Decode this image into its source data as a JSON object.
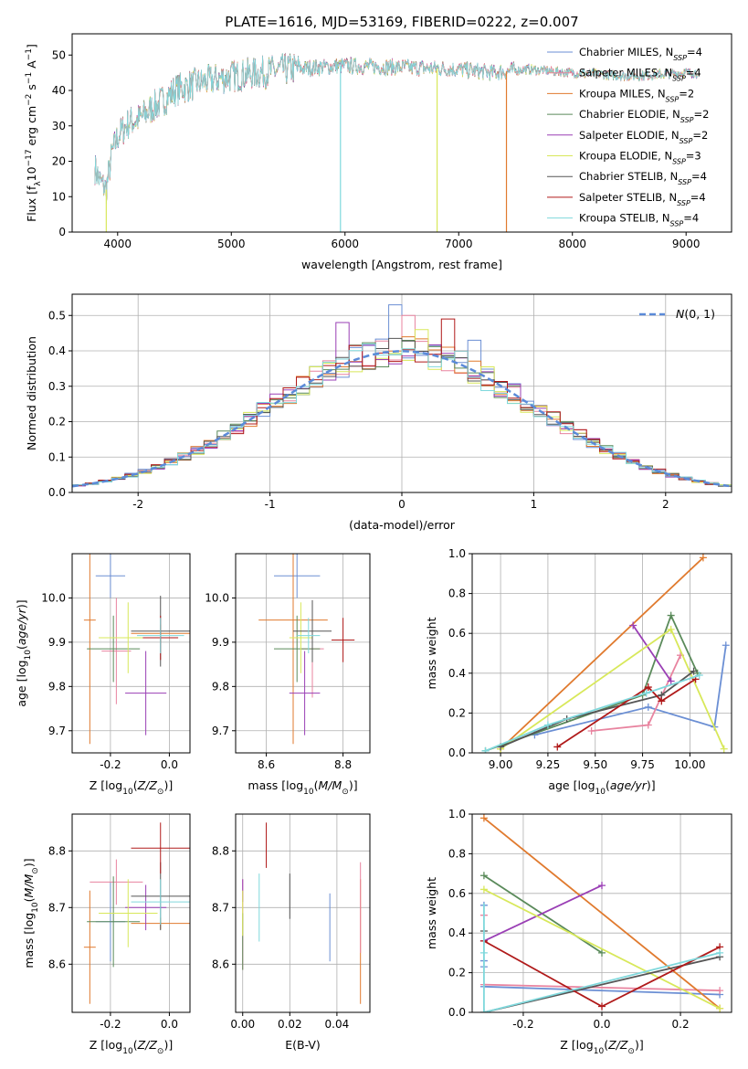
{
  "figure_title": "PLATE=1616, MJD=53169, FIBERID=0222, z=0.007",
  "series_colors": [
    "#6b8fd4",
    "#e8839f",
    "#e07a2e",
    "#5a8a5a",
    "#9a3fb5",
    "#d8e85a",
    "#555555",
    "#b01a1a",
    "#7fd8dc"
  ],
  "chart_data": [
    {
      "id": "spectrum",
      "type": "line",
      "title": "PLATE=1616, MJD=53169, FIBERID=0222, z=0.007",
      "xlabel": "wavelength [Angstrom, rest frame]",
      "ylabel": "Flux [f_λ 10^-17 erg cm^-2 s^-1 A^-1]",
      "xlim": [
        3600,
        9400
      ],
      "ylim": [
        0,
        56
      ],
      "xticks": [
        4000,
        5000,
        6000,
        7000,
        8000,
        9000
      ],
      "yticks": [
        0,
        10,
        20,
        30,
        40,
        50
      ],
      "grid": false,
      "legend_position": "top-right",
      "legend": [
        {
          "name": "Chabrier MILES, N_SSP=4",
          "base": "Chabrier MILES, N",
          "sub": "SSP",
          "tail": "=4"
        },
        {
          "name": "Salpeter MILES, N_SSP=4",
          "base": "Salpeter MILES, N",
          "sub": "SSP",
          "tail": "=4"
        },
        {
          "name": "Kroupa MILES, N_SSP=2",
          "base": "Kroupa MILES, N",
          "sub": "SSP",
          "tail": "=2"
        },
        {
          "name": "Chabrier ELODIE, N_SSP=2",
          "base": "Chabrier ELODIE, N",
          "sub": "SSP",
          "tail": "=2"
        },
        {
          "name": "Salpeter ELODIE, N_SSP=2",
          "base": "Salpeter ELODIE, N",
          "sub": "SSP",
          "tail": "=2"
        },
        {
          "name": "Kroupa ELODIE, N_SSP=3",
          "base": "Kroupa ELODIE, N",
          "sub": "SSP",
          "tail": "=3"
        },
        {
          "name": "Chabrier STELIB, N_SSP=4",
          "base": "Chabrier STELIB, N",
          "sub": "SSP",
          "tail": "=4"
        },
        {
          "name": "Salpeter STELIB, N_SSP=4",
          "base": "Salpeter STELIB, N",
          "sub": "SSP",
          "tail": "=4"
        },
        {
          "name": "Kroupa STELIB, N_SSP=4",
          "base": "Kroupa STELIB, N",
          "sub": "SSP",
          "tail": "=4"
        }
      ],
      "continuum": {
        "x": [
          3800,
          3850,
          3900,
          3950,
          4000,
          4100,
          4200,
          4300,
          4400,
          4500,
          4700,
          5000,
          5500,
          6000,
          6500,
          7000,
          7300,
          7600,
          8000,
          8500,
          9000,
          9100
        ],
        "y": [
          18,
          14,
          12,
          22,
          27,
          31,
          32,
          35,
          37,
          40,
          42,
          44,
          46,
          47,
          46.5,
          46,
          45,
          46,
          45,
          44,
          45,
          45
        ]
      },
      "spikes": [
        {
          "x": 3900,
          "y": 0,
          "series": 5
        },
        {
          "x": 5960,
          "y": 0,
          "series": 8
        },
        {
          "x": 6810,
          "y": 0,
          "series": 5
        },
        {
          "x": 7420,
          "y": 0,
          "series": 2
        }
      ]
    },
    {
      "id": "residuals",
      "type": "histogram",
      "xlabel": "(data-model)/error",
      "ylabel": "Normed distribution",
      "xlim": [
        -2.5,
        2.5
      ],
      "ylim": [
        0,
        0.56
      ],
      "xticks": [
        -2,
        -1,
        0,
        1,
        2
      ],
      "yticks": [
        0.0,
        0.1,
        0.2,
        0.3,
        0.4,
        0.5
      ],
      "grid": true,
      "legend_position": "top-right",
      "legend": [
        "N(0,1)"
      ],
      "bin_width": 0.1,
      "reference_curve": "normal(0,1)",
      "highlight_bins": [
        {
          "series": 0,
          "center": -0.05,
          "value": 0.53
        },
        {
          "series": 4,
          "center": -0.45,
          "value": 0.48
        },
        {
          "series": 1,
          "center": 0.05,
          "value": 0.5
        },
        {
          "series": 7,
          "center": 0.35,
          "value": 0.49
        },
        {
          "series": 0,
          "center": 0.6,
          "value": 0.43
        },
        {
          "series": 5,
          "center": 0.15,
          "value": 0.46
        }
      ]
    },
    {
      "id": "age-vs-Z",
      "type": "errorbar",
      "xlabel": "Z [log10(Z/Z⊙)]",
      "ylabel": "age [log10(age/yr)]",
      "xlim": [
        -0.33,
        0.07
      ],
      "ylim": [
        9.65,
        10.1
      ],
      "xticks": [
        -0.2,
        0.0
      ],
      "yticks": [
        9.7,
        9.8,
        9.9,
        10.0
      ],
      "grid": true,
      "points": [
        {
          "x": -0.2,
          "y": 10.05,
          "xerr": 0.05,
          "yerr": 0.05,
          "series": 0
        },
        {
          "x": -0.18,
          "y": 9.88,
          "xerr": 0.05,
          "yerr": 0.12,
          "series": 1
        },
        {
          "x": -0.27,
          "y": 9.95,
          "xerr": 0.02,
          "yerr": 0.28,
          "series": 2
        },
        {
          "x": -0.03,
          "y": 9.92,
          "xerr": 0.1,
          "yerr": 0.02,
          "series": 2
        },
        {
          "x": -0.19,
          "y": 9.885,
          "xerr": 0.09,
          "yerr": 0.075,
          "series": 3
        },
        {
          "x": -0.08,
          "y": 9.785,
          "xerr": 0.07,
          "yerr": 0.095,
          "series": 4
        },
        {
          "x": -0.14,
          "y": 9.91,
          "xerr": 0.1,
          "yerr": 0.08,
          "series": 5
        },
        {
          "x": -0.03,
          "y": 9.925,
          "xerr": 0.1,
          "yerr": 0.08,
          "series": 6
        },
        {
          "x": -0.03,
          "y": 9.91,
          "xerr": 0.06,
          "yerr": 0.05,
          "series": 7
        },
        {
          "x": -0.03,
          "y": 9.915,
          "xerr": 0.08,
          "yerr": 0.04,
          "series": 8
        }
      ]
    },
    {
      "id": "age-vs-mass",
      "type": "errorbar",
      "xlabel": "mass [log10(M/M⊙)]",
      "ylabel": "",
      "xlim": [
        8.52,
        8.87
      ],
      "ylim": [
        9.65,
        10.1
      ],
      "xticks": [
        8.6,
        8.8
      ],
      "yticks": [
        9.7,
        9.8,
        9.9,
        10.0
      ],
      "grid": true,
      "points": [
        {
          "x": 8.68,
          "y": 10.05,
          "xerr": 0.06,
          "yerr": 0.05,
          "series": 0
        },
        {
          "x": 8.72,
          "y": 9.885,
          "xerr": 0.03,
          "yerr": 0.11,
          "series": 1
        },
        {
          "x": 8.67,
          "y": 9.95,
          "xerr": 0.09,
          "yerr": 0.28,
          "series": 2
        },
        {
          "x": 8.68,
          "y": 9.885,
          "xerr": 0.06,
          "yerr": 0.075,
          "series": 3
        },
        {
          "x": 8.7,
          "y": 9.785,
          "xerr": 0.04,
          "yerr": 0.095,
          "series": 4
        },
        {
          "x": 8.69,
          "y": 9.91,
          "xerr": 0.03,
          "yerr": 0.08,
          "series": 5
        },
        {
          "x": 8.72,
          "y": 9.925,
          "xerr": 0.05,
          "yerr": 0.07,
          "series": 6
        },
        {
          "x": 8.8,
          "y": 9.905,
          "xerr": 0.03,
          "yerr": 0.05,
          "series": 7
        },
        {
          "x": 8.71,
          "y": 9.915,
          "xerr": 0.03,
          "yerr": 0.04,
          "series": 8
        }
      ]
    },
    {
      "id": "weight-vs-age",
      "type": "line",
      "xlabel": "age [log10(age/yr)]",
      "ylabel": "mass weight",
      "xlim": [
        8.85,
        10.22
      ],
      "ylim": [
        0.0,
        1.0
      ],
      "xticks": [
        9.0,
        9.25,
        9.5,
        9.75,
        10.0
      ],
      "yticks": [
        0.0,
        0.2,
        0.4,
        0.6,
        0.8,
        1.0
      ],
      "grid": true,
      "series": [
        {
          "series": 0,
          "x": [
            9.18,
            9.78,
            10.13,
            10.19
          ],
          "y": [
            0.09,
            0.23,
            0.13,
            0.54
          ]
        },
        {
          "series": 1,
          "x": [
            9.48,
            9.78,
            9.95
          ],
          "y": [
            0.11,
            0.14,
            0.49
          ]
        },
        {
          "series": 2,
          "x": [
            9.0,
            10.07
          ],
          "y": [
            0.02,
            0.98
          ]
        },
        {
          "series": 3,
          "x": [
            8.92,
            9.75,
            9.9,
            10.04
          ],
          "y": [
            0.01,
            0.29,
            0.69,
            0.4
          ]
        },
        {
          "series": 4,
          "x": [
            9.7,
            9.9
          ],
          "y": [
            0.64,
            0.36
          ]
        },
        {
          "series": 5,
          "x": [
            9.0,
            9.9,
            10.18
          ],
          "y": [
            0.02,
            0.62,
            0.02
          ]
        },
        {
          "series": 6,
          "x": [
            9.0,
            9.35,
            9.85,
            10.02
          ],
          "y": [
            0.03,
            0.17,
            0.29,
            0.41
          ]
        },
        {
          "series": 7,
          "x": [
            9.3,
            9.78,
            9.85,
            10.03
          ],
          "y": [
            0.03,
            0.33,
            0.26,
            0.37
          ]
        },
        {
          "series": 8,
          "x": [
            8.92,
            9.25,
            9.77,
            10.05
          ],
          "y": [
            0.01,
            0.14,
            0.3,
            0.39
          ]
        }
      ]
    },
    {
      "id": "mass-vs-Z",
      "type": "errorbar",
      "xlabel": "Z [log10(Z/Z⊙)]",
      "ylabel": "mass [log10(M/M⊙)]",
      "xlim": [
        -0.33,
        0.07
      ],
      "ylim": [
        8.515,
        8.865
      ],
      "xticks": [
        -0.2,
        0.0
      ],
      "yticks": [
        8.6,
        8.7,
        8.8
      ],
      "grid": true,
      "points": [
        {
          "x": -0.2,
          "y": 8.675,
          "xerr": 0.05,
          "yerr": 0.07,
          "series": 0
        },
        {
          "x": -0.18,
          "y": 8.745,
          "xerr": 0.09,
          "yerr": 0.04,
          "series": 1
        },
        {
          "x": -0.27,
          "y": 8.63,
          "xerr": 0.02,
          "yerr": 0.1,
          "series": 2
        },
        {
          "x": -0.03,
          "y": 8.672,
          "xerr": 0.1,
          "yerr": 0.01,
          "series": 2
        },
        {
          "x": -0.19,
          "y": 8.675,
          "xerr": 0.09,
          "yerr": 0.08,
          "series": 3
        },
        {
          "x": -0.08,
          "y": 8.7,
          "xerr": 0.07,
          "yerr": 0.04,
          "series": 4
        },
        {
          "x": -0.14,
          "y": 8.69,
          "xerr": 0.1,
          "yerr": 0.06,
          "series": 5
        },
        {
          "x": -0.03,
          "y": 8.72,
          "xerr": 0.1,
          "yerr": 0.06,
          "series": 6
        },
        {
          "x": -0.03,
          "y": 8.805,
          "xerr": 0.1,
          "yerr": 0.045,
          "series": 7
        },
        {
          "x": -0.03,
          "y": 8.71,
          "xerr": 0.1,
          "yerr": 0.04,
          "series": 8
        }
      ]
    },
    {
      "id": "mass-vs-ebv",
      "type": "errorbar",
      "xlabel": "E(B-V)",
      "ylabel": "",
      "xlim": [
        -0.003,
        0.054
      ],
      "ylim": [
        8.515,
        8.865
      ],
      "xticks": [
        0.0,
        0.02,
        0.04
      ],
      "yticks": [
        8.6,
        8.7,
        8.8
      ],
      "grid": true,
      "points": [
        {
          "x": 0.037,
          "y": 8.665,
          "yerr": 0.06,
          "series": 0
        },
        {
          "x": 0.0,
          "y": 8.67,
          "yerr": 0.08,
          "series": 1
        },
        {
          "x": 0.05,
          "y": 8.64,
          "yerr": 0.11,
          "series": 2
        },
        {
          "x": 0.05,
          "y": 8.7,
          "yerr": 0.08,
          "series": 1
        },
        {
          "x": 0.0,
          "y": 8.64,
          "yerr": 0.05,
          "series": 3
        },
        {
          "x": 0.0,
          "y": 8.73,
          "yerr": 0.02,
          "series": 4
        },
        {
          "x": 0.0,
          "y": 8.69,
          "yerr": 0.04,
          "series": 5
        },
        {
          "x": 0.02,
          "y": 8.72,
          "yerr": 0.04,
          "series": 6
        },
        {
          "x": 0.01,
          "y": 8.81,
          "yerr": 0.04,
          "series": 7
        },
        {
          "x": 0.007,
          "y": 8.7,
          "yerr": 0.06,
          "series": 8
        }
      ]
    },
    {
      "id": "weight-vs-Z",
      "type": "line",
      "xlabel": "Z [log10(Z/Z⊙)]",
      "ylabel": "mass weight",
      "xlim": [
        -0.33,
        0.33
      ],
      "ylim": [
        0.0,
        1.0
      ],
      "xticks": [
        -0.2,
        0.0,
        0.2
      ],
      "yticks": [
        0.0,
        0.2,
        0.4,
        0.6,
        0.8,
        1.0
      ],
      "grid": true,
      "series": [
        {
          "series": 0,
          "x": [
            -0.3,
            0.3
          ],
          "y": [
            0.13,
            0.09
          ]
        },
        {
          "series": 1,
          "x": [
            -0.3,
            0.3
          ],
          "y": [
            0.14,
            0.11
          ]
        },
        {
          "series": 2,
          "x": [
            -0.3,
            0.3
          ],
          "y": [
            0.98,
            0.02
          ]
        },
        {
          "series": 3,
          "x": [
            -0.3,
            0.0
          ],
          "y": [
            0.69,
            0.3
          ]
        },
        {
          "series": 4,
          "x": [
            -0.3,
            0.0
          ],
          "y": [
            0.36,
            0.64
          ]
        },
        {
          "series": 5,
          "x": [
            -0.3,
            0.3
          ],
          "y": [
            0.62,
            0.02
          ]
        },
        {
          "series": 6,
          "x": [
            -0.3,
            0.3
          ],
          "y": [
            0.0,
            0.28
          ]
        },
        {
          "series": 7,
          "x": [
            -0.3,
            0.0,
            0.3
          ],
          "y": [
            0.36,
            0.03,
            0.33
          ]
        },
        {
          "series": 8,
          "x": [
            -0.3,
            0.3
          ],
          "y": [
            0.0,
            0.3
          ]
        }
      ],
      "stack_at_left": [
        0.54,
        0.49,
        0.41,
        0.3,
        0.26,
        0.23
      ]
    }
  ]
}
